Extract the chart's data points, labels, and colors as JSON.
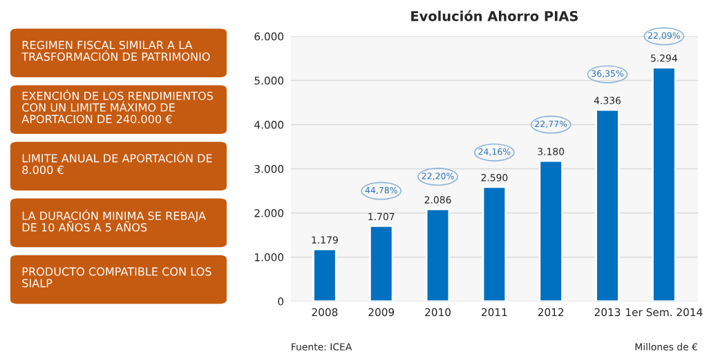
{
  "chart_data": [
    {
      "type": "other",
      "colors": [
        "#c55a11"
      ],
      "annotations": [
        "REGIMEN FISCAL SIMILAR A LA TRASFORMACIÓN DE PATRIMONIO",
        "EXENCIÓN DE LOS RENDIMIENTOS CON UN LIMITE MÁXIMO DE APORTACION DE 240.000 €",
        "LIMITE ANUAL DE APORTACIÓN DE 8.000 €",
        "LA DURACIÓN MINIMA SE REBAJA DE 10 AÑOS A 5 AÑOS",
        "PRODUCTO COMPATIBLE CON LOS SIALP"
      ]
    },
    {
      "type": "bar",
      "title": "Evolución Ahorro PIAS",
      "categories": [
        "2008",
        "2009",
        "2010",
        "2011",
        "2012",
        "2013",
        "1er Sem. 2014"
      ],
      "values": [
        1179,
        1707,
        2086,
        2590,
        3180,
        4336,
        5294
      ],
      "value_labels": [
        "1.179",
        "1.707",
        "2.086",
        "2.590",
        "3.180",
        "4.336",
        "5.294"
      ],
      "color": "#0070c0",
      "ylim": [
        0,
        6000
      ],
      "yticks": [
        {
          "value": 0,
          "label": "0"
        },
        {
          "value": 1000,
          "label": "1.000"
        },
        {
          "value": 2000,
          "label": "2.000"
        },
        {
          "value": 3000,
          "label": "3.000"
        },
        {
          "value": 4000,
          "label": "4.000"
        },
        {
          "value": 5000,
          "label": "5.000"
        },
        {
          "value": 6000,
          "label": "6.000"
        }
      ],
      "grid": "y",
      "annotations": [
        {
          "text": "44,78%",
          "x": "2009",
          "y": 2500
        },
        {
          "text": "22,20%",
          "x": "2010",
          "y": 2820
        },
        {
          "text": "24,16%",
          "x": "2011",
          "y": 3370
        },
        {
          "text": "22,77%",
          "x": "2012",
          "y": 4000
        },
        {
          "text": "36,35%",
          "x": "2013",
          "y": 5140
        },
        {
          "text": "22,09%",
          "x": "1er Sem. 2014",
          "y": 6000
        },
        "Fuente: ICEA",
        "Millones de €"
      ]
    }
  ]
}
